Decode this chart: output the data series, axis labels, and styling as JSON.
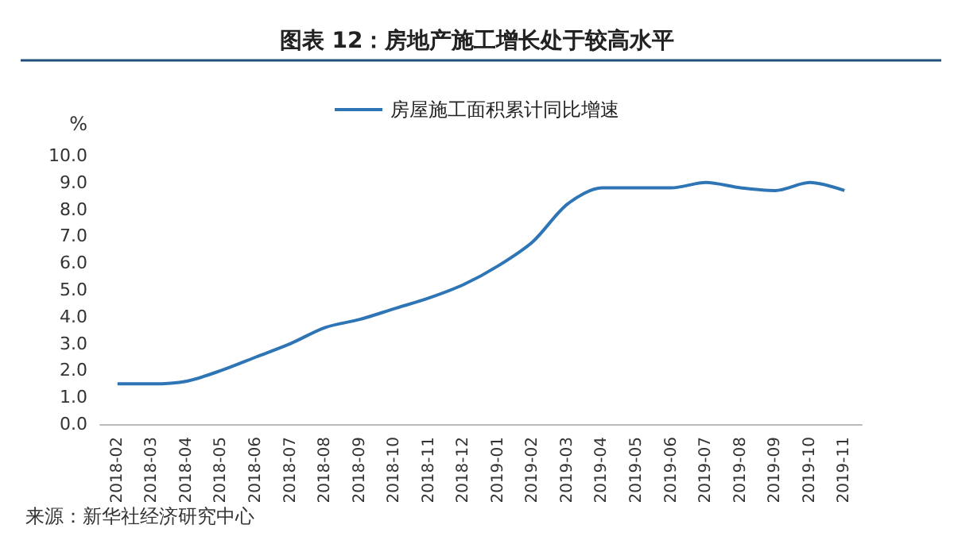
{
  "chart_data": {
    "type": "line",
    "title": "图表 12：房地产施工增长处于较高水平",
    "ylabel": "%",
    "annotations": [
      "来源：新华社经济研究中心"
    ],
    "categories": [
      "2018-02",
      "2018-03",
      "2018-04",
      "2018-05",
      "2018-06",
      "2018-07",
      "2018-08",
      "2018-09",
      "2018-10",
      "2018-11",
      "2018-12",
      "2019-01",
      "2019-02",
      "2019-03",
      "2019-04",
      "2019-05",
      "2019-06",
      "2019-07",
      "2019-08",
      "2019-09",
      "2019-10",
      "2019-11"
    ],
    "series": [
      {
        "name": "房屋施工面积累计同比增速",
        "color": "#2e75b6",
        "values": [
          1.5,
          1.5,
          1.6,
          2.0,
          2.5,
          3.0,
          3.6,
          3.9,
          4.3,
          4.7,
          5.2,
          5.9,
          6.8,
          8.2,
          8.8,
          8.8,
          8.8,
          9.0,
          8.8,
          8.7,
          9.0,
          8.7
        ]
      }
    ],
    "ylim": [
      0,
      10
    ],
    "yticks": [
      {
        "value": 0,
        "label": "0.0"
      },
      {
        "value": 1,
        "label": "1.0"
      },
      {
        "value": 2,
        "label": "2.0"
      },
      {
        "value": 3,
        "label": "3.0"
      },
      {
        "value": 4,
        "label": "4.0"
      },
      {
        "value": 5,
        "label": "5.0"
      },
      {
        "value": 6,
        "label": "6.0"
      },
      {
        "value": 7,
        "label": "7.0"
      },
      {
        "value": 8,
        "label": "8.0"
      },
      {
        "value": 9,
        "label": "9.0"
      },
      {
        "value": 10,
        "label": "10.0"
      }
    ],
    "grid": false,
    "legend": "top",
    "marker": "none",
    "line_style": "solid"
  }
}
